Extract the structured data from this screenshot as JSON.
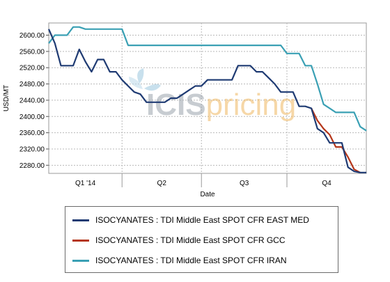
{
  "chart_data": {
    "type": "line",
    "xlabel": "Date",
    "ylabel": "USD/MT",
    "ylim": [
      2260,
      2630
    ],
    "yticks": [
      2280,
      2320,
      2360,
      2400,
      2440,
      2480,
      2520,
      2560,
      2600
    ],
    "ytick_labels": [
      "2280.00",
      "2320.00",
      "2360.00",
      "2400.00",
      "2440.00",
      "2480.00",
      "2520.00",
      "2560.00",
      "2600.00"
    ],
    "xlim": [
      0,
      52
    ],
    "quarter_boundaries": [
      12,
      25,
      39
    ],
    "quarter_labels": [
      {
        "label": "Q1 '14",
        "pos": 6
      },
      {
        "label": "Q2",
        "pos": 18.5
      },
      {
        "label": "Q3",
        "pos": 32
      },
      {
        "label": "Q4",
        "pos": 45.5
      }
    ],
    "grid": true,
    "legend_position": "bottom",
    "watermark": {
      "part1": "ICIS",
      "part2": "pricing"
    },
    "series": [
      {
        "name": "ISOCYANATES : TDI Middle East SPOT CFR EAST MED",
        "color": "#1f3b73",
        "x": [
          0,
          1,
          2,
          3,
          4,
          5,
          6,
          7,
          8,
          9,
          10,
          11,
          12,
          13,
          14,
          15,
          16,
          17,
          18,
          19,
          20,
          21,
          22,
          23,
          24,
          25,
          26,
          27,
          28,
          29,
          30,
          31,
          32,
          33,
          34,
          35,
          36,
          37,
          38,
          39,
          40,
          41,
          42,
          43,
          44,
          45,
          46,
          47,
          48,
          49,
          50,
          51,
          52
        ],
        "y": [
          2615,
          2580,
          2525,
          2525,
          2525,
          2565,
          2535,
          2510,
          2540,
          2540,
          2510,
          2510,
          2490,
          2475,
          2460,
          2455,
          2435,
          2435,
          2435,
          2435,
          2445,
          2445,
          2455,
          2465,
          2475,
          2475,
          2490,
          2490,
          2490,
          2490,
          2490,
          2525,
          2525,
          2525,
          2510,
          2510,
          2495,
          2480,
          2460,
          2460,
          2460,
          2425,
          2425,
          2420,
          2370,
          2360,
          2335,
          2335,
          2335,
          2275,
          2265,
          2262,
          2262
        ]
      },
      {
        "name": "ISOCYANATES : TDI Middle East SPOT CFR GCC",
        "color": "#b5361a",
        "x": [
          43,
          44,
          45,
          46,
          47,
          48,
          49,
          50,
          51
        ],
        "y": [
          2420,
          2390,
          2370,
          2355,
          2325,
          2325,
          2300,
          2270,
          2262
        ]
      },
      {
        "name": "ISOCYANATES : TDI Middle East SPOT CFR IRAN",
        "color": "#3aa0b4",
        "x": [
          0,
          1,
          2,
          3,
          4,
          5,
          6,
          7,
          8,
          9,
          10,
          11,
          12,
          13,
          14,
          15,
          16,
          17,
          18,
          19,
          20,
          21,
          22,
          23,
          24,
          25,
          26,
          27,
          28,
          29,
          30,
          31,
          32,
          33,
          34,
          35,
          36,
          37,
          38,
          39,
          40,
          41,
          42,
          43,
          44,
          45,
          46,
          47,
          48,
          49,
          50,
          51,
          52
        ],
        "y": [
          2580,
          2600,
          2600,
          2600,
          2620,
          2620,
          2615,
          2615,
          2615,
          2615,
          2615,
          2615,
          2615,
          2575,
          2575,
          2575,
          2575,
          2575,
          2575,
          2575,
          2575,
          2575,
          2575,
          2575,
          2575,
          2575,
          2575,
          2575,
          2575,
          2575,
          2575,
          2575,
          2575,
          2575,
          2575,
          2575,
          2575,
          2575,
          2575,
          2555,
          2555,
          2555,
          2525,
          2525,
          2480,
          2430,
          2420,
          2410,
          2410,
          2410,
          2410,
          2375,
          2365
        ]
      }
    ]
  }
}
